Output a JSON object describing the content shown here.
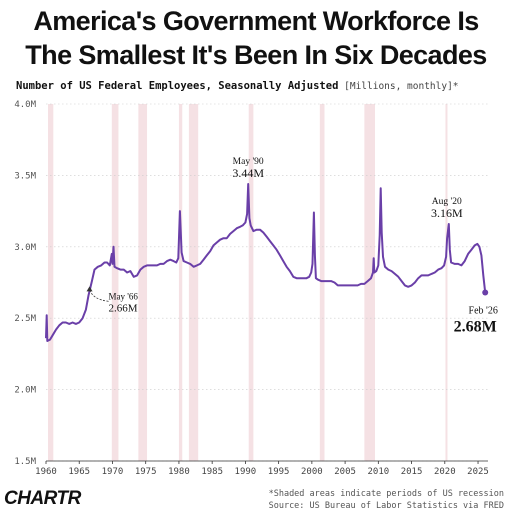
{
  "header": {
    "title_line1": "America's Government Workforce Is",
    "title_line2": "The Smallest It's Been In Six Decades",
    "subtitle_main": "Number of US Federal Employees, Seasonally Adjusted",
    "subtitle_units": " [Millions, monthly]*"
  },
  "footer": {
    "logo": "CHARTR",
    "note": "*Shaded areas indicate periods of US recession",
    "source": "Source: US Bureau of Labor Statistics via FRED"
  },
  "colors": {
    "line": "#6a3fa8",
    "recession": "#f5e1e4",
    "grid": "#cccccc",
    "text": "#111111"
  },
  "chart_data": {
    "type": "line",
    "title": "America's Government Workforce Is The Smallest It's Been In Six Decades",
    "subtitle": "Number of US Federal Employees, Seasonally Adjusted [Millions, monthly]*",
    "xlabel": "",
    "ylabel": "",
    "xlim": [
      1960,
      2026.5
    ],
    "ylim": [
      1.5,
      4.0
    ],
    "grid": true,
    "x_ticks": [
      1960,
      1965,
      1970,
      1975,
      1980,
      1985,
      1990,
      1995,
      2000,
      2005,
      2010,
      2015,
      2020,
      2025
    ],
    "y_ticks": [
      {
        "value": 1.5,
        "label": "1.5M"
      },
      {
        "value": 2.0,
        "label": "2.0M"
      },
      {
        "value": 2.5,
        "label": "2.5M"
      },
      {
        "value": 3.0,
        "label": "3.0M"
      },
      {
        "value": 3.5,
        "label": "3.5M"
      },
      {
        "value": 4.0,
        "label": "4.0M"
      }
    ],
    "recessions": [
      [
        1960.3,
        1961.1
      ],
      [
        1969.9,
        1970.9
      ],
      [
        1973.9,
        1975.2
      ],
      [
        1980.0,
        1980.5
      ],
      [
        1981.5,
        1982.9
      ],
      [
        1990.5,
        1991.2
      ],
      [
        2001.2,
        2001.9
      ],
      [
        2007.9,
        2009.5
      ],
      [
        2020.1,
        2020.4
      ]
    ],
    "series": [
      {
        "values": [
          [
            1960.0,
            2.36
          ],
          [
            1960.1,
            2.52
          ],
          [
            1960.2,
            2.34
          ],
          [
            1960.6,
            2.35
          ],
          [
            1961.0,
            2.38
          ],
          [
            1961.5,
            2.42
          ],
          [
            1962.0,
            2.45
          ],
          [
            1962.5,
            2.47
          ],
          [
            1963.0,
            2.47
          ],
          [
            1963.5,
            2.46
          ],
          [
            1964.0,
            2.47
          ],
          [
            1964.5,
            2.46
          ],
          [
            1965.0,
            2.47
          ],
          [
            1965.5,
            2.5
          ],
          [
            1966.0,
            2.56
          ],
          [
            1966.4,
            2.66
          ],
          [
            1966.9,
            2.76
          ],
          [
            1967.3,
            2.84
          ],
          [
            1967.8,
            2.86
          ],
          [
            1968.3,
            2.87
          ],
          [
            1968.8,
            2.89
          ],
          [
            1969.2,
            2.89
          ],
          [
            1969.6,
            2.87
          ],
          [
            1969.9,
            2.95
          ],
          [
            1970.0,
            2.88
          ],
          [
            1970.15,
            3.0
          ],
          [
            1970.3,
            2.86
          ],
          [
            1970.7,
            2.85
          ],
          [
            1971.2,
            2.84
          ],
          [
            1971.7,
            2.84
          ],
          [
            1972.2,
            2.82
          ],
          [
            1972.7,
            2.83
          ],
          [
            1973.2,
            2.79
          ],
          [
            1973.7,
            2.8
          ],
          [
            1974.2,
            2.84
          ],
          [
            1974.7,
            2.86
          ],
          [
            1975.2,
            2.87
          ],
          [
            1975.7,
            2.87
          ],
          [
            1976.2,
            2.87
          ],
          [
            1976.7,
            2.87
          ],
          [
            1977.2,
            2.88
          ],
          [
            1977.7,
            2.88
          ],
          [
            1978.2,
            2.9
          ],
          [
            1978.7,
            2.91
          ],
          [
            1979.2,
            2.9
          ],
          [
            1979.6,
            2.89
          ],
          [
            1979.9,
            2.92
          ],
          [
            1980.15,
            3.25
          ],
          [
            1980.4,
            2.96
          ],
          [
            1980.7,
            2.9
          ],
          [
            1981.2,
            2.89
          ],
          [
            1981.7,
            2.88
          ],
          [
            1982.2,
            2.86
          ],
          [
            1982.7,
            2.87
          ],
          [
            1983.2,
            2.88
          ],
          [
            1983.7,
            2.91
          ],
          [
            1984.2,
            2.94
          ],
          [
            1984.7,
            2.97
          ],
          [
            1985.2,
            3.01
          ],
          [
            1985.7,
            3.03
          ],
          [
            1986.2,
            3.05
          ],
          [
            1986.7,
            3.06
          ],
          [
            1987.2,
            3.06
          ],
          [
            1987.7,
            3.09
          ],
          [
            1988.2,
            3.11
          ],
          [
            1988.7,
            3.13
          ],
          [
            1989.2,
            3.14
          ],
          [
            1989.6,
            3.15
          ],
          [
            1990.0,
            3.17
          ],
          [
            1990.25,
            3.23
          ],
          [
            1990.42,
            3.44
          ],
          [
            1990.6,
            3.2
          ],
          [
            1990.8,
            3.15
          ],
          [
            1991.2,
            3.11
          ],
          [
            1991.7,
            3.12
          ],
          [
            1992.2,
            3.12
          ],
          [
            1992.7,
            3.1
          ],
          [
            1993.2,
            3.07
          ],
          [
            1993.7,
            3.04
          ],
          [
            1994.2,
            3.01
          ],
          [
            1994.7,
            2.98
          ],
          [
            1995.2,
            2.94
          ],
          [
            1995.7,
            2.9
          ],
          [
            1996.2,
            2.86
          ],
          [
            1996.7,
            2.83
          ],
          [
            1997.2,
            2.79
          ],
          [
            1997.7,
            2.78
          ],
          [
            1998.2,
            2.78
          ],
          [
            1998.7,
            2.78
          ],
          [
            1999.2,
            2.78
          ],
          [
            1999.6,
            2.79
          ],
          [
            1999.9,
            2.82
          ],
          [
            2000.1,
            2.88
          ],
          [
            2000.3,
            3.24
          ],
          [
            2000.45,
            2.94
          ],
          [
            2000.6,
            2.78
          ],
          [
            2000.9,
            2.77
          ],
          [
            2001.4,
            2.76
          ],
          [
            2001.9,
            2.76
          ],
          [
            2002.4,
            2.76
          ],
          [
            2002.9,
            2.76
          ],
          [
            2003.4,
            2.75
          ],
          [
            2003.9,
            2.73
          ],
          [
            2004.4,
            2.73
          ],
          [
            2004.9,
            2.73
          ],
          [
            2005.4,
            2.73
          ],
          [
            2005.9,
            2.73
          ],
          [
            2006.4,
            2.73
          ],
          [
            2006.9,
            2.73
          ],
          [
            2007.4,
            2.74
          ],
          [
            2007.9,
            2.74
          ],
          [
            2008.4,
            2.76
          ],
          [
            2008.9,
            2.78
          ],
          [
            2009.2,
            2.82
          ],
          [
            2009.3,
            2.92
          ],
          [
            2009.4,
            2.82
          ],
          [
            2009.7,
            2.83
          ],
          [
            2010.0,
            2.87
          ],
          [
            2010.2,
            3.08
          ],
          [
            2010.35,
            3.41
          ],
          [
            2010.5,
            3.1
          ],
          [
            2010.7,
            2.93
          ],
          [
            2011.0,
            2.86
          ],
          [
            2011.5,
            2.84
          ],
          [
            2012.0,
            2.83
          ],
          [
            2012.5,
            2.81
          ],
          [
            2013.0,
            2.79
          ],
          [
            2013.5,
            2.76
          ],
          [
            2014.0,
            2.73
          ],
          [
            2014.5,
            2.72
          ],
          [
            2015.0,
            2.73
          ],
          [
            2015.5,
            2.75
          ],
          [
            2016.0,
            2.78
          ],
          [
            2016.5,
            2.8
          ],
          [
            2017.0,
            2.8
          ],
          [
            2017.5,
            2.8
          ],
          [
            2018.0,
            2.81
          ],
          [
            2018.5,
            2.82
          ],
          [
            2019.0,
            2.84
          ],
          [
            2019.5,
            2.85
          ],
          [
            2019.9,
            2.87
          ],
          [
            2020.2,
            2.93
          ],
          [
            2020.35,
            3.06
          ],
          [
            2020.6,
            3.16
          ],
          [
            2020.75,
            2.98
          ],
          [
            2020.95,
            2.89
          ],
          [
            2021.5,
            2.88
          ],
          [
            2022.0,
            2.88
          ],
          [
            2022.5,
            2.87
          ],
          [
            2023.0,
            2.9
          ],
          [
            2023.5,
            2.95
          ],
          [
            2024.0,
            2.98
          ],
          [
            2024.5,
            3.01
          ],
          [
            2024.9,
            3.02
          ],
          [
            2025.2,
            3.0
          ],
          [
            2025.5,
            2.94
          ],
          [
            2025.8,
            2.8
          ],
          [
            2026.08,
            2.68
          ]
        ]
      }
    ],
    "annotations": [
      {
        "date": "May '66",
        "value": "2.66M",
        "x": 1966.4,
        "y": 2.66
      },
      {
        "date": "May '90",
        "value": "3.44M",
        "x": 1990.42,
        "y": 3.44
      },
      {
        "date": "Aug '20",
        "value": "3.16M",
        "x": 2020.6,
        "y": 3.16
      },
      {
        "date": "Feb '26",
        "value": "2.68M",
        "x": 2026.08,
        "y": 2.68
      }
    ]
  }
}
